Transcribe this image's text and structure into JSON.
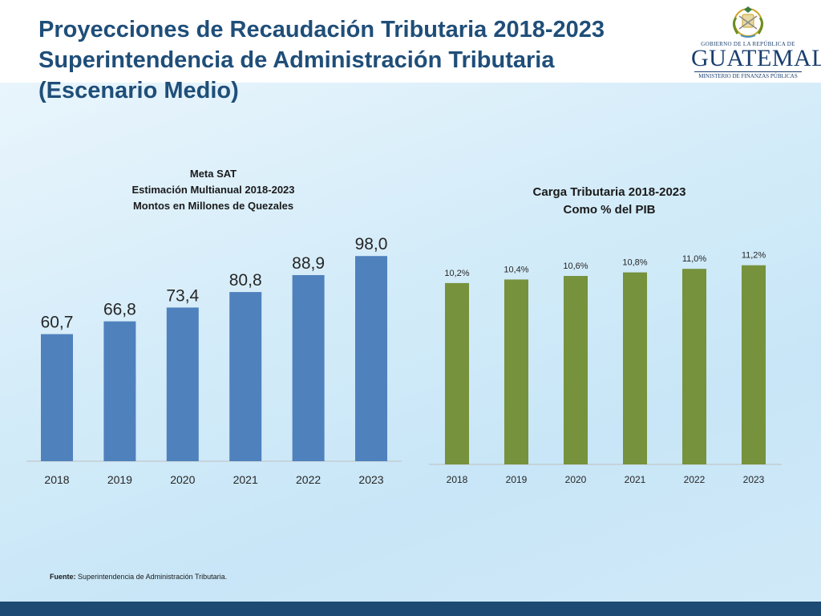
{
  "title_lines": [
    "Proyecciones de Recaudación Tributaria 2018-2023",
    "Superintendencia de Administración Tributaria",
    "(Escenario Medio)"
  ],
  "logo": {
    "gov_text": "GOBIERNO DE LA REPÚBLICA DE",
    "country": "GUATEMALA",
    "ministry": "MINISTERIO DE FINANZAS PÚBLICAS"
  },
  "footer": {
    "label": "Fuente:",
    "text": "Superintendencia de Administración Tributaria."
  },
  "colors": {
    "title": "#1f4e79",
    "bar_blue": "#4f81bd",
    "bar_green": "#76923c",
    "bottom_bar": "#1c4a73"
  },
  "chart_data": [
    {
      "type": "bar",
      "title_lines": [
        "Meta SAT",
        "Estimación Multianual 2018-2023",
        "Montos en Millones de Quezales"
      ],
      "categories": [
        "2018",
        "2019",
        "2020",
        "2021",
        "2022",
        "2023"
      ],
      "values": [
        60.7,
        66.8,
        73.4,
        80.8,
        88.9,
        98.0
      ],
      "labels": [
        "60,7",
        "66,8",
        "73,4",
        "80,8",
        "88,9",
        "98,0"
      ],
      "color": "#4f81bd",
      "ylim": [
        0,
        100
      ]
    },
    {
      "type": "bar",
      "title_lines": [
        "Carga Tributaria 2018-2023",
        "Como % del PIB"
      ],
      "categories": [
        "2018",
        "2019",
        "2020",
        "2021",
        "2022",
        "2023"
      ],
      "values": [
        10.2,
        10.4,
        10.6,
        10.8,
        11.0,
        11.2
      ],
      "labels": [
        "10,2%",
        "10,4%",
        "10,6%",
        "10,8%",
        "11,0%",
        "11,2%"
      ],
      "color": "#76923c",
      "ylim": [
        0,
        12
      ]
    }
  ]
}
